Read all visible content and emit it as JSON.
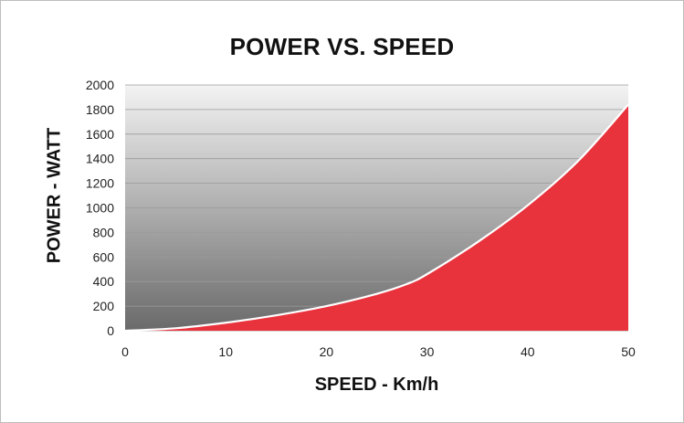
{
  "chart_data": {
    "type": "area",
    "title": "POWER VS. SPEED",
    "xlabel": "SPEED - Km/h",
    "ylabel": "POWER - WATT",
    "xlim": [
      0,
      50
    ],
    "ylim": [
      0,
      2000
    ],
    "x_ticks": [
      "0",
      "10",
      "20",
      "30",
      "40",
      "50"
    ],
    "y_ticks": [
      "0",
      "200",
      "400",
      "600",
      "800",
      "1000",
      "1200",
      "1400",
      "1600",
      "1800",
      "2000"
    ],
    "grid": true,
    "legend": "none",
    "series": [
      {
        "color": "#e8323c",
        "x": [
          0,
          5,
          10,
          15,
          20,
          25,
          28,
          30,
          35,
          40,
          45,
          50
        ],
        "values": [
          0,
          20,
          65,
          125,
          200,
          300,
          380,
          460,
          720,
          1020,
          1380,
          1840
        ]
      }
    ],
    "colors": {
      "fill": "#e8323c",
      "curve": "#ffffff",
      "plot_bg_top": "#f3f3f3",
      "plot_bg_bottom": "#6a6a6a",
      "grid": "#9a9a9a"
    }
  }
}
